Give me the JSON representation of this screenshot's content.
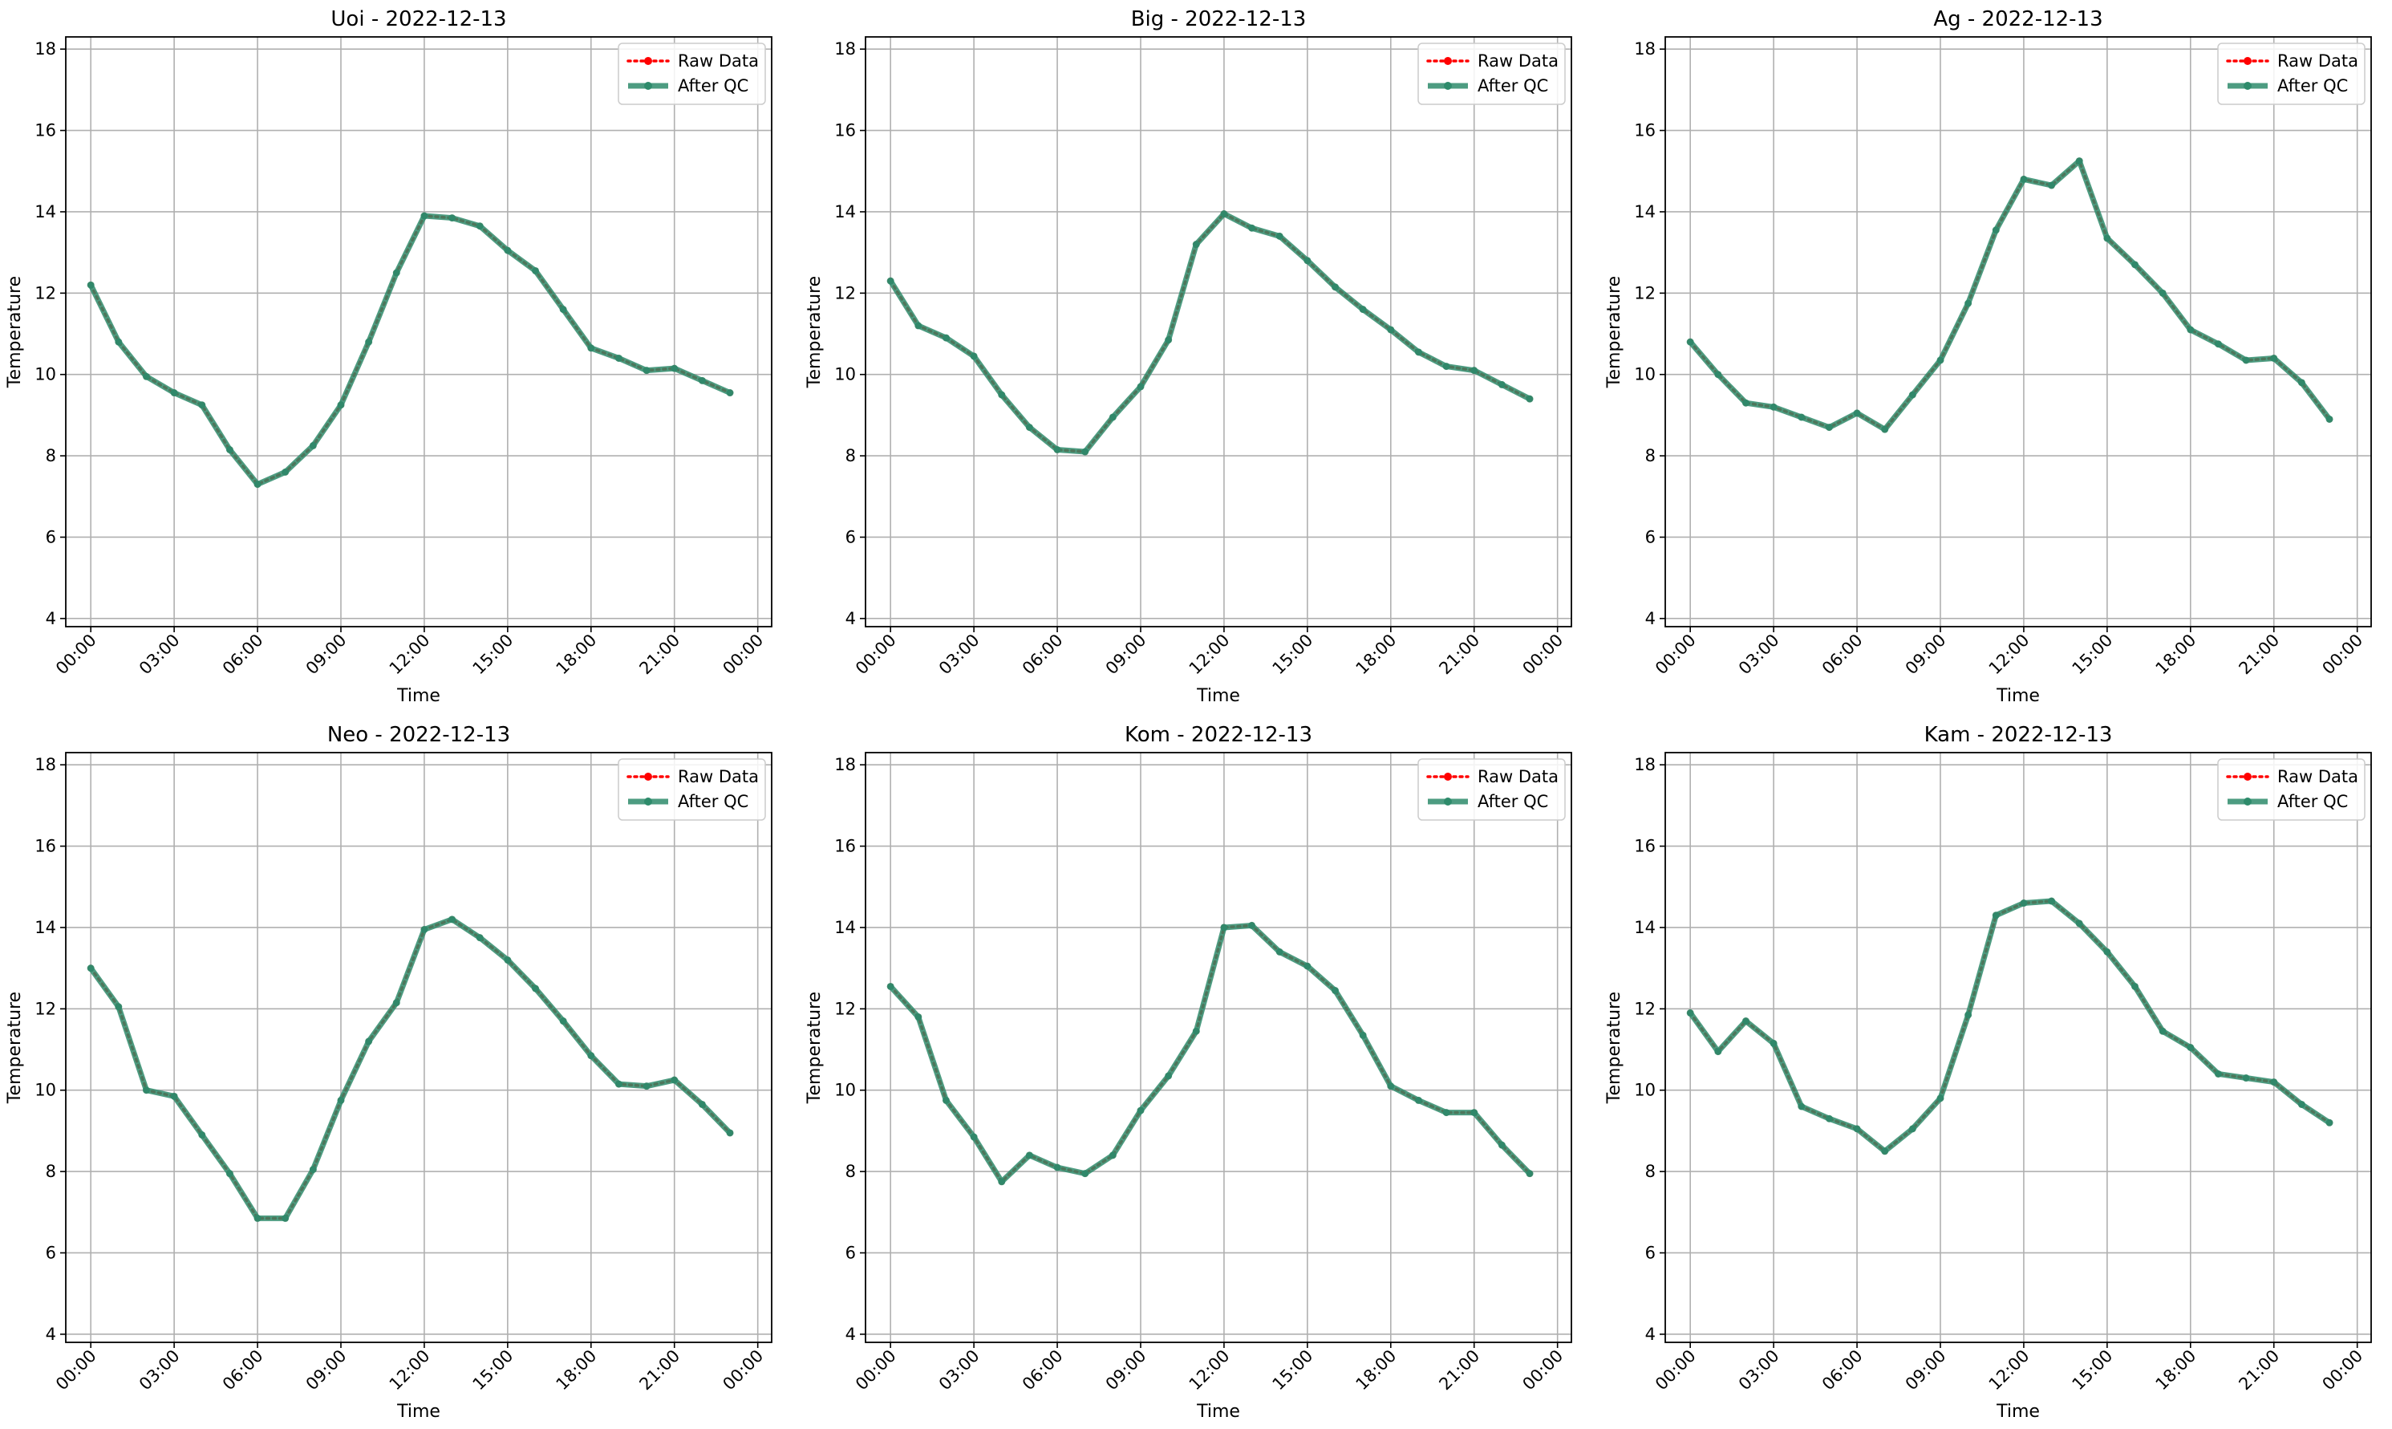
{
  "figure": {
    "colors": {
      "raw": "#ff0000",
      "qc": "#2e8b6b",
      "grid": "#b0b0b0",
      "axes": "#000000"
    },
    "legend": {
      "position": "upper-right",
      "entries": [
        "Raw Data",
        "After QC"
      ]
    }
  },
  "chart_data": [
    {
      "type": "line",
      "title": "Uoi - 2022-12-13",
      "xlabel": "Time",
      "ylabel": "Temperature",
      "ylim": [
        3.8,
        18.3
      ],
      "yticks": [
        "4",
        "6",
        "8",
        "10",
        "12",
        "14",
        "16",
        "18"
      ],
      "xticks": [
        "00:00",
        "03:00",
        "06:00",
        "09:00",
        "12:00",
        "15:00",
        "18:00",
        "21:00",
        "00:00"
      ],
      "grid": true,
      "x": [
        0,
        1,
        2,
        3,
        4,
        5,
        6,
        7,
        8,
        9,
        10,
        11,
        12,
        13,
        14,
        15,
        16,
        17,
        18,
        19,
        20,
        21,
        22,
        23
      ],
      "series": [
        {
          "name": "Raw Data",
          "values": [
            12.2,
            10.8,
            9.95,
            9.55,
            9.25,
            8.15,
            7.3,
            7.6,
            8.25,
            9.25,
            10.8,
            12.5,
            13.9,
            13.85,
            13.65,
            13.05,
            12.55,
            11.6,
            10.65,
            10.4,
            10.1,
            10.15,
            9.85,
            9.55
          ]
        },
        {
          "name": "After QC",
          "values": [
            12.2,
            10.8,
            9.95,
            9.55,
            9.25,
            8.15,
            7.3,
            7.6,
            8.25,
            9.25,
            10.8,
            12.5,
            13.9,
            13.85,
            13.65,
            13.05,
            12.55,
            11.6,
            10.65,
            10.4,
            10.1,
            10.15,
            9.85,
            9.55
          ]
        }
      ]
    },
    {
      "type": "line",
      "title": "Big - 2022-12-13",
      "xlabel": "Time",
      "ylabel": "Temperature",
      "ylim": [
        3.8,
        18.3
      ],
      "yticks": [
        "4",
        "6",
        "8",
        "10",
        "12",
        "14",
        "16",
        "18"
      ],
      "xticks": [
        "00:00",
        "03:00",
        "06:00",
        "09:00",
        "12:00",
        "15:00",
        "18:00",
        "21:00",
        "00:00"
      ],
      "grid": true,
      "x": [
        0,
        1,
        2,
        3,
        4,
        5,
        6,
        7,
        8,
        9,
        10,
        11,
        12,
        13,
        14,
        15,
        16,
        17,
        18,
        19,
        20,
        21,
        22,
        23
      ],
      "series": [
        {
          "name": "Raw Data",
          "values": [
            12.3,
            11.2,
            10.9,
            10.45,
            9.5,
            8.7,
            8.15,
            8.1,
            8.95,
            9.7,
            10.85,
            13.2,
            13.95,
            13.6,
            13.4,
            12.8,
            12.15,
            11.6,
            11.1,
            10.55,
            10.2,
            10.1,
            9.75,
            9.4
          ]
        },
        {
          "name": "After QC",
          "values": [
            12.3,
            11.2,
            10.9,
            10.45,
            9.5,
            8.7,
            8.15,
            8.1,
            8.95,
            9.7,
            10.85,
            13.2,
            13.95,
            13.6,
            13.4,
            12.8,
            12.15,
            11.6,
            11.1,
            10.55,
            10.2,
            10.1,
            9.75,
            9.4
          ]
        }
      ]
    },
    {
      "type": "line",
      "title": "Ag - 2022-12-13",
      "xlabel": "Time",
      "ylabel": "Temperature",
      "ylim": [
        3.8,
        18.3
      ],
      "yticks": [
        "4",
        "6",
        "8",
        "10",
        "12",
        "14",
        "16",
        "18"
      ],
      "xticks": [
        "00:00",
        "03:00",
        "06:00",
        "09:00",
        "12:00",
        "15:00",
        "18:00",
        "21:00",
        "00:00"
      ],
      "grid": true,
      "x": [
        0,
        1,
        2,
        3,
        4,
        5,
        6,
        7,
        8,
        9,
        10,
        11,
        12,
        13,
        14,
        15,
        16,
        17,
        18,
        19,
        20,
        21,
        22,
        23
      ],
      "series": [
        {
          "name": "Raw Data",
          "values": [
            10.8,
            10.0,
            9.3,
            9.2,
            8.95,
            8.7,
            9.05,
            8.65,
            9.5,
            10.35,
            11.75,
            13.55,
            14.8,
            14.65,
            15.25,
            13.35,
            12.7,
            12.0,
            11.1,
            10.75,
            10.35,
            10.4,
            9.8,
            8.9
          ]
        },
        {
          "name": "After QC",
          "values": [
            10.8,
            10.0,
            9.3,
            9.2,
            8.95,
            8.7,
            9.05,
            8.65,
            9.5,
            10.35,
            11.75,
            13.55,
            14.8,
            14.65,
            15.25,
            13.35,
            12.7,
            12.0,
            11.1,
            10.75,
            10.35,
            10.4,
            9.8,
            8.9
          ]
        }
      ]
    },
    {
      "type": "line",
      "title": "Neo - 2022-12-13",
      "xlabel": "Time",
      "ylabel": "Temperature",
      "ylim": [
        3.8,
        18.3
      ],
      "yticks": [
        "4",
        "6",
        "8",
        "10",
        "12",
        "14",
        "16",
        "18"
      ],
      "xticks": [
        "00:00",
        "03:00",
        "06:00",
        "09:00",
        "12:00",
        "15:00",
        "18:00",
        "21:00",
        "00:00"
      ],
      "grid": true,
      "x": [
        0,
        1,
        2,
        3,
        4,
        5,
        6,
        7,
        8,
        9,
        10,
        11,
        12,
        13,
        14,
        15,
        16,
        17,
        18,
        19,
        20,
        21,
        22,
        23
      ],
      "series": [
        {
          "name": "Raw Data",
          "values": [
            13.0,
            12.05,
            10.0,
            9.85,
            8.9,
            7.95,
            6.85,
            6.85,
            8.05,
            9.75,
            11.2,
            12.15,
            13.95,
            14.2,
            13.75,
            13.2,
            12.5,
            11.7,
            10.85,
            10.15,
            10.1,
            10.25,
            9.65,
            8.95
          ]
        },
        {
          "name": "After QC",
          "values": [
            13.0,
            12.05,
            10.0,
            9.85,
            8.9,
            7.95,
            6.85,
            6.85,
            8.05,
            9.75,
            11.2,
            12.15,
            13.95,
            14.2,
            13.75,
            13.2,
            12.5,
            11.7,
            10.85,
            10.15,
            10.1,
            10.25,
            9.65,
            8.95
          ]
        }
      ]
    },
    {
      "type": "line",
      "title": "Kom - 2022-12-13",
      "xlabel": "Time",
      "ylabel": "Temperature",
      "ylim": [
        3.8,
        18.3
      ],
      "yticks": [
        "4",
        "6",
        "8",
        "10",
        "12",
        "14",
        "16",
        "18"
      ],
      "xticks": [
        "00:00",
        "03:00",
        "06:00",
        "09:00",
        "12:00",
        "15:00",
        "18:00",
        "21:00",
        "00:00"
      ],
      "grid": true,
      "x": [
        0,
        1,
        2,
        3,
        4,
        5,
        6,
        7,
        8,
        9,
        10,
        11,
        12,
        13,
        14,
        15,
        16,
        17,
        18,
        19,
        20,
        21,
        22,
        23
      ],
      "series": [
        {
          "name": "Raw Data",
          "values": [
            12.55,
            11.8,
            9.75,
            8.85,
            7.75,
            8.4,
            8.1,
            7.95,
            8.4,
            9.5,
            10.35,
            11.45,
            14.0,
            14.05,
            13.4,
            13.05,
            12.45,
            11.35,
            10.1,
            9.75,
            9.45,
            9.45,
            8.65,
            7.95
          ]
        },
        {
          "name": "After QC",
          "values": [
            12.55,
            11.8,
            9.75,
            8.85,
            7.75,
            8.4,
            8.1,
            7.95,
            8.4,
            9.5,
            10.35,
            11.45,
            14.0,
            14.05,
            13.4,
            13.05,
            12.45,
            11.35,
            10.1,
            9.75,
            9.45,
            9.45,
            8.65,
            7.95
          ]
        }
      ]
    },
    {
      "type": "line",
      "title": "Kam - 2022-12-13",
      "xlabel": "Time",
      "ylabel": "Temperature",
      "ylim": [
        3.8,
        18.3
      ],
      "yticks": [
        "4",
        "6",
        "8",
        "10",
        "12",
        "14",
        "16",
        "18"
      ],
      "xticks": [
        "00:00",
        "03:00",
        "06:00",
        "09:00",
        "12:00",
        "15:00",
        "18:00",
        "21:00",
        "00:00"
      ],
      "grid": true,
      "x": [
        0,
        1,
        2,
        3,
        4,
        5,
        6,
        7,
        8,
        9,
        10,
        11,
        12,
        13,
        14,
        15,
        16,
        17,
        18,
        19,
        20,
        21,
        22,
        23
      ],
      "series": [
        {
          "name": "Raw Data",
          "values": [
            11.9,
            10.95,
            11.7,
            11.15,
            9.6,
            9.3,
            9.05,
            8.5,
            9.05,
            9.8,
            11.85,
            14.3,
            14.6,
            14.65,
            14.1,
            13.4,
            12.55,
            11.45,
            11.05,
            10.4,
            10.3,
            10.2,
            9.65,
            9.2
          ]
        },
        {
          "name": "After QC",
          "values": [
            11.9,
            10.95,
            11.7,
            11.15,
            9.6,
            9.3,
            9.05,
            8.5,
            9.05,
            9.8,
            11.85,
            14.3,
            14.6,
            14.65,
            14.1,
            13.4,
            12.55,
            11.45,
            11.05,
            10.4,
            10.3,
            10.2,
            9.65,
            9.2
          ]
        }
      ]
    }
  ]
}
